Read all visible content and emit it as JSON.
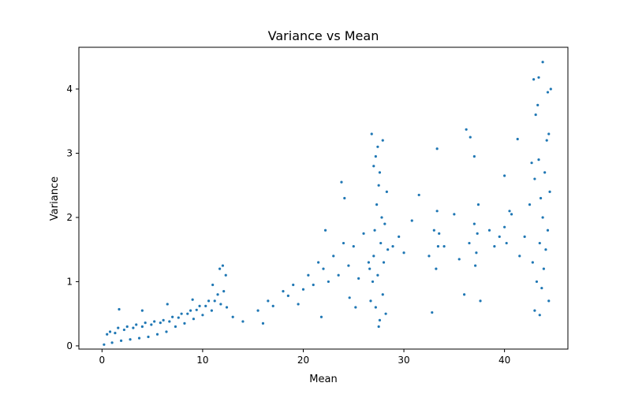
{
  "chart_data": {
    "type": "scatter",
    "title": "Variance vs Mean",
    "xlabel": "Mean",
    "ylabel": "Variance",
    "xlim": [
      -2.3,
      46.3
    ],
    "ylim": [
      -0.05,
      4.65
    ],
    "xticks": [
      0,
      10,
      20,
      30,
      40
    ],
    "yticks": [
      0,
      1,
      2,
      3,
      4
    ],
    "grid": false,
    "color": "#1f77b4",
    "series": [
      {
        "values_description_note": "",
        "points": [
          [
            0.2,
            0.02
          ],
          [
            0.5,
            0.18
          ],
          [
            0.8,
            0.22
          ],
          [
            1.0,
            0.05
          ],
          [
            1.3,
            0.2
          ],
          [
            1.6,
            0.28
          ],
          [
            1.9,
            0.08
          ],
          [
            2.2,
            0.25
          ],
          [
            2.5,
            0.3
          ],
          [
            2.8,
            0.1
          ],
          [
            3.1,
            0.28
          ],
          [
            3.4,
            0.33
          ],
          [
            3.7,
            0.12
          ],
          [
            4.0,
            0.3
          ],
          [
            4.3,
            0.36
          ],
          [
            4.6,
            0.14
          ],
          [
            4.9,
            0.33
          ],
          [
            5.2,
            0.38
          ],
          [
            5.5,
            0.18
          ],
          [
            5.8,
            0.36
          ],
          [
            6.1,
            0.4
          ],
          [
            6.4,
            0.22
          ],
          [
            6.7,
            0.38
          ],
          [
            7.0,
            0.45
          ],
          [
            7.3,
            0.3
          ],
          [
            7.6,
            0.44
          ],
          [
            7.9,
            0.5
          ],
          [
            8.2,
            0.35
          ],
          [
            8.5,
            0.5
          ],
          [
            8.8,
            0.55
          ],
          [
            9.1,
            0.42
          ],
          [
            9.4,
            0.56
          ],
          [
            9.7,
            0.62
          ],
          [
            10.0,
            0.48
          ],
          [
            10.3,
            0.62
          ],
          [
            10.6,
            0.7
          ],
          [
            10.9,
            0.55
          ],
          [
            11.2,
            0.7
          ],
          [
            11.5,
            0.8
          ],
          [
            11.8,
            0.65
          ],
          [
            12.1,
            0.85
          ],
          [
            12.3,
            1.1
          ],
          [
            12.4,
            0.6
          ],
          [
            1.7,
            0.57
          ],
          [
            4.0,
            0.55
          ],
          [
            6.5,
            0.65
          ],
          [
            9.0,
            0.72
          ],
          [
            11.0,
            0.95
          ],
          [
            12.0,
            1.25
          ],
          [
            11.7,
            1.2
          ],
          [
            13.0,
            0.45
          ],
          [
            14.0,
            0.38
          ],
          [
            15.5,
            0.55
          ],
          [
            16.5,
            0.7
          ],
          [
            17.0,
            0.62
          ],
          [
            18.0,
            0.85
          ],
          [
            18.5,
            0.78
          ],
          [
            19.0,
            0.95
          ],
          [
            20.0,
            0.88
          ],
          [
            20.5,
            1.1
          ],
          [
            21.0,
            0.95
          ],
          [
            21.5,
            1.3
          ],
          [
            22.0,
            1.2
          ],
          [
            22.5,
            1.0
          ],
          [
            23.0,
            1.4
          ],
          [
            23.5,
            1.1
          ],
          [
            24.0,
            1.6
          ],
          [
            24.5,
            1.25
          ],
          [
            25.0,
            1.55
          ],
          [
            25.5,
            1.05
          ],
          [
            26.0,
            1.75
          ],
          [
            26.5,
            1.3
          ],
          [
            22.2,
            1.8
          ],
          [
            24.1,
            2.3
          ],
          [
            23.8,
            2.55
          ],
          [
            16.0,
            0.35
          ],
          [
            19.5,
            0.65
          ],
          [
            21.8,
            0.45
          ],
          [
            25.2,
            0.6
          ],
          [
            24.6,
            0.75
          ],
          [
            26.7,
            0.7
          ],
          [
            26.9,
            1.0
          ],
          [
            27.0,
            1.4
          ],
          [
            27.1,
            1.8
          ],
          [
            27.2,
            0.6
          ],
          [
            27.3,
            2.2
          ],
          [
            27.4,
            1.1
          ],
          [
            27.5,
            2.5
          ],
          [
            27.6,
            0.4
          ],
          [
            27.7,
            1.6
          ],
          [
            27.8,
            2.0
          ],
          [
            27.9,
            0.8
          ],
          [
            28.0,
            1.3
          ],
          [
            28.1,
            1.9
          ],
          [
            28.2,
            0.5
          ],
          [
            28.3,
            2.4
          ],
          [
            27.0,
            2.8
          ],
          [
            27.4,
            3.1
          ],
          [
            26.8,
            3.3
          ],
          [
            27.9,
            3.2
          ],
          [
            27.5,
            0.3
          ],
          [
            27.2,
            2.95
          ],
          [
            28.4,
            1.5
          ],
          [
            26.6,
            1.2
          ],
          [
            27.6,
            2.7
          ],
          [
            28.9,
            1.55
          ],
          [
            29.5,
            1.7
          ],
          [
            30.0,
            1.45
          ],
          [
            30.8,
            1.95
          ],
          [
            31.5,
            2.35
          ],
          [
            32.5,
            1.4
          ],
          [
            33.0,
            1.8
          ],
          [
            33.3,
            2.1
          ],
          [
            33.4,
            1.55
          ],
          [
            33.2,
            1.2
          ],
          [
            33.5,
            1.75
          ],
          [
            33.3,
            3.07
          ],
          [
            32.8,
            0.52
          ],
          [
            34.0,
            1.55
          ],
          [
            35.0,
            2.05
          ],
          [
            35.5,
            1.35
          ],
          [
            36.0,
            0.8
          ],
          [
            36.5,
            1.6
          ],
          [
            37.0,
            1.9
          ],
          [
            37.2,
            1.45
          ],
          [
            37.4,
            2.2
          ],
          [
            37.1,
            1.25
          ],
          [
            37.3,
            1.75
          ],
          [
            37.0,
            2.95
          ],
          [
            36.6,
            3.25
          ],
          [
            36.2,
            3.37
          ],
          [
            37.6,
            0.7
          ],
          [
            38.5,
            1.8
          ],
          [
            39.0,
            1.55
          ],
          [
            39.5,
            1.7
          ],
          [
            40.0,
            1.85
          ],
          [
            40.2,
            1.6
          ],
          [
            40.5,
            2.1
          ],
          [
            40.0,
            2.65
          ],
          [
            40.7,
            2.05
          ],
          [
            41.3,
            3.22
          ],
          [
            41.5,
            1.4
          ],
          [
            42.0,
            1.7
          ],
          [
            42.5,
            2.2
          ],
          [
            42.8,
            1.3
          ],
          [
            43.0,
            2.6
          ],
          [
            43.2,
            1.0
          ],
          [
            43.4,
            2.9
          ],
          [
            43.5,
            1.6
          ],
          [
            43.6,
            2.3
          ],
          [
            43.7,
            0.9
          ],
          [
            43.8,
            2.0
          ],
          [
            43.9,
            1.2
          ],
          [
            44.0,
            2.7
          ],
          [
            44.1,
            1.5
          ],
          [
            44.2,
            3.2
          ],
          [
            44.3,
            1.8
          ],
          [
            44.4,
            0.7
          ],
          [
            44.5,
            2.4
          ],
          [
            43.1,
            3.6
          ],
          [
            43.3,
            3.75
          ],
          [
            43.4,
            4.18
          ],
          [
            43.8,
            4.42
          ],
          [
            44.3,
            3.95
          ],
          [
            44.6,
            4.0
          ],
          [
            43.0,
            0.55
          ],
          [
            43.5,
            0.48
          ],
          [
            42.9,
            4.15
          ],
          [
            44.4,
            3.3
          ],
          [
            42.7,
            2.85
          ]
        ]
      }
    ]
  }
}
